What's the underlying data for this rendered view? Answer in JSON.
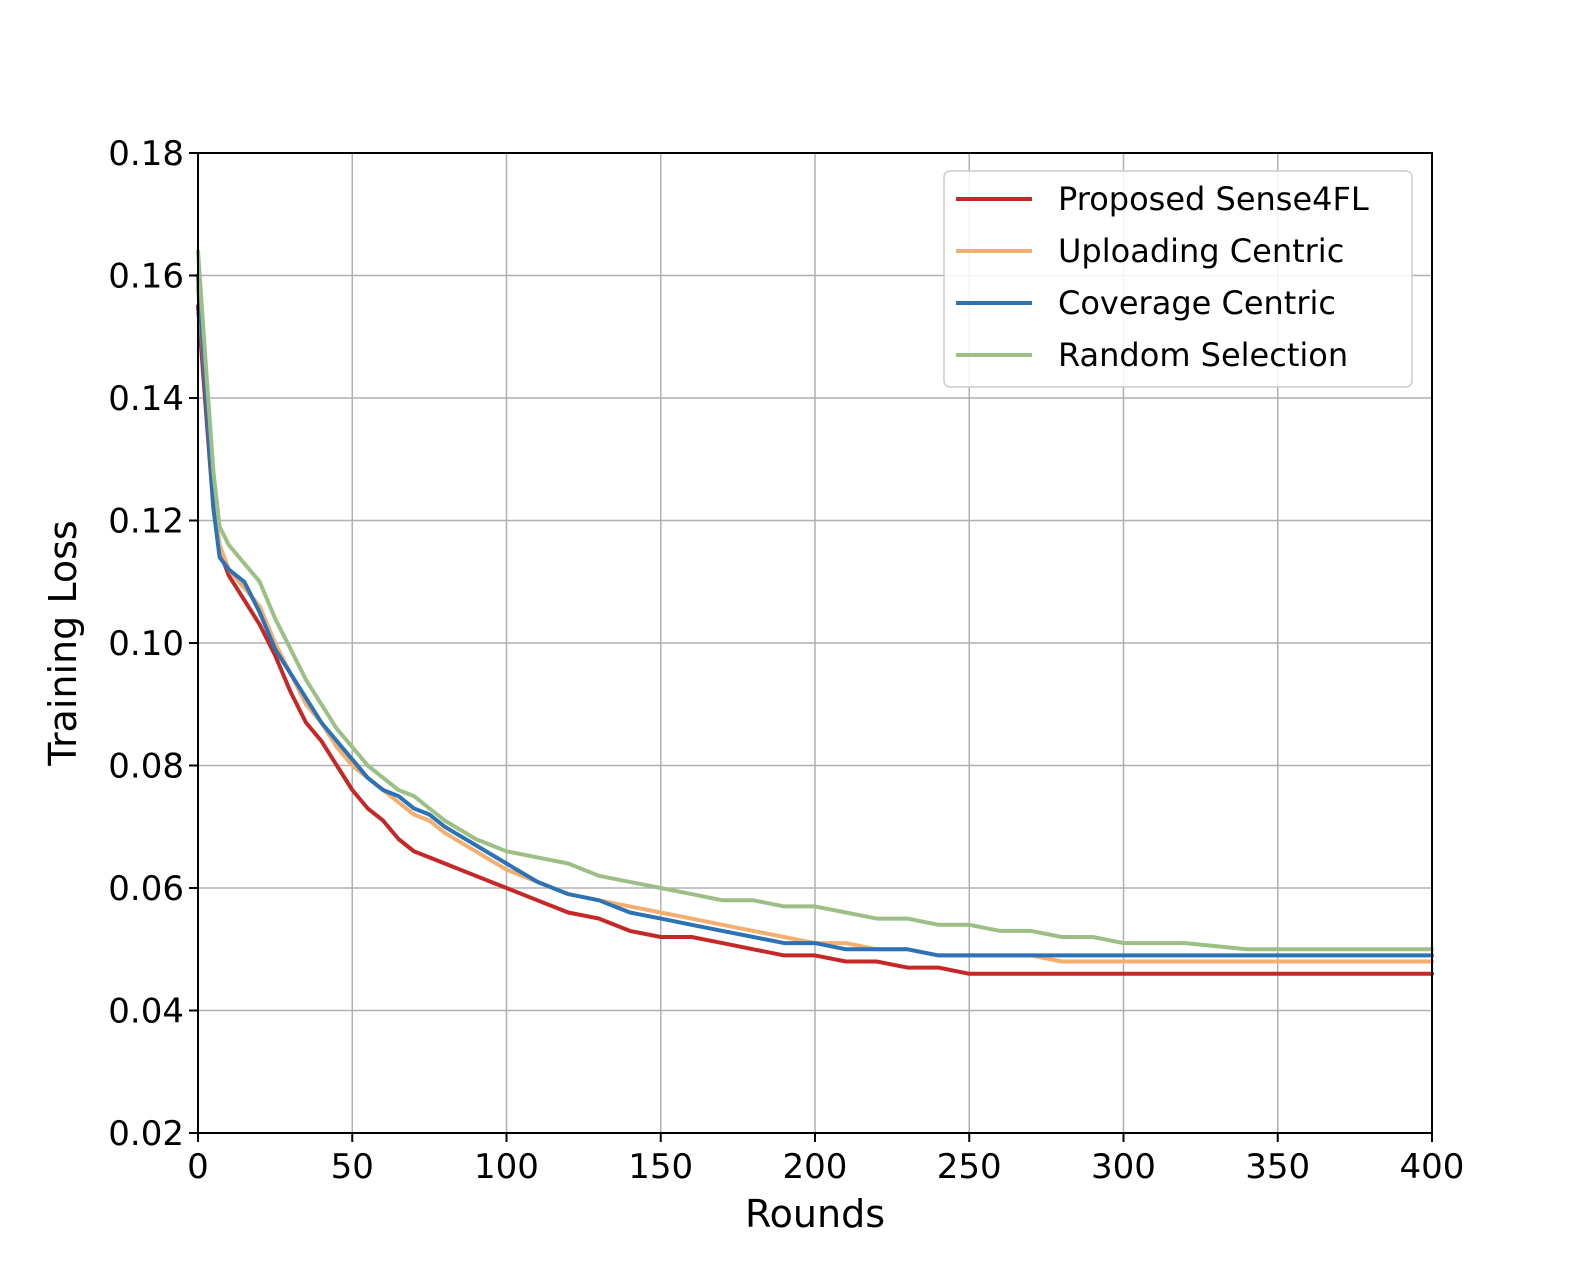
{
  "chart_data": {
    "type": "line",
    "xlabel": "Rounds",
    "ylabel": "Training Loss",
    "xlim": [
      0,
      400
    ],
    "ylim": [
      0.02,
      0.18
    ],
    "xticks": [
      "0",
      "50",
      "100",
      "150",
      "200",
      "250",
      "300",
      "350",
      "400"
    ],
    "yticks": [
      "0.02",
      "0.04",
      "0.06",
      "0.08",
      "0.10",
      "0.12",
      "0.14",
      "0.16",
      "0.18"
    ],
    "grid": true,
    "legend_position": "top-right",
    "series": [
      {
        "name": "Proposed Sense4FL",
        "color": "#c62828",
        "x": [
          0,
          3,
          5,
          7,
          10,
          15,
          20,
          25,
          30,
          35,
          40,
          45,
          50,
          55,
          60,
          65,
          70,
          75,
          80,
          90,
          100,
          110,
          120,
          130,
          140,
          150,
          160,
          170,
          180,
          190,
          200,
          210,
          220,
          230,
          240,
          250,
          260,
          270,
          280,
          290,
          300,
          320,
          340,
          360,
          380,
          400
        ],
        "y": [
          0.155,
          0.135,
          0.122,
          0.115,
          0.111,
          0.107,
          0.103,
          0.098,
          0.092,
          0.087,
          0.084,
          0.08,
          0.076,
          0.073,
          0.071,
          0.068,
          0.066,
          0.065,
          0.064,
          0.062,
          0.06,
          0.058,
          0.056,
          0.055,
          0.053,
          0.052,
          0.052,
          0.051,
          0.05,
          0.049,
          0.049,
          0.048,
          0.048,
          0.047,
          0.047,
          0.046,
          0.046,
          0.046,
          0.046,
          0.046,
          0.046,
          0.046,
          0.046,
          0.046,
          0.046,
          0.046
        ]
      },
      {
        "name": "Uploading Centric",
        "color": "#f4ae6f",
        "x": [
          0,
          3,
          5,
          7,
          10,
          15,
          20,
          25,
          30,
          35,
          40,
          45,
          50,
          55,
          60,
          65,
          70,
          75,
          80,
          90,
          100,
          110,
          120,
          130,
          140,
          150,
          160,
          170,
          180,
          190,
          200,
          210,
          220,
          230,
          240,
          250,
          260,
          270,
          280,
          290,
          300,
          320,
          340,
          360,
          380,
          400
        ],
        "y": [
          0.158,
          0.138,
          0.124,
          0.116,
          0.112,
          0.109,
          0.106,
          0.1,
          0.095,
          0.09,
          0.087,
          0.083,
          0.08,
          0.078,
          0.076,
          0.074,
          0.072,
          0.071,
          0.069,
          0.066,
          0.063,
          0.061,
          0.059,
          0.058,
          0.057,
          0.056,
          0.055,
          0.054,
          0.053,
          0.052,
          0.051,
          0.051,
          0.05,
          0.05,
          0.049,
          0.049,
          0.049,
          0.049,
          0.048,
          0.048,
          0.048,
          0.048,
          0.048,
          0.048,
          0.048,
          0.048
        ]
      },
      {
        "name": "Coverage Centric",
        "color": "#2b73b5",
        "x": [
          0,
          3,
          5,
          7,
          10,
          15,
          20,
          25,
          30,
          35,
          40,
          45,
          50,
          55,
          60,
          65,
          70,
          75,
          80,
          90,
          100,
          110,
          120,
          130,
          140,
          150,
          160,
          170,
          180,
          190,
          200,
          210,
          220,
          230,
          240,
          250,
          260,
          270,
          280,
          290,
          300,
          320,
          340,
          360,
          380,
          400
        ],
        "y": [
          0.16,
          0.137,
          0.122,
          0.114,
          0.112,
          0.11,
          0.105,
          0.099,
          0.095,
          0.091,
          0.087,
          0.084,
          0.081,
          0.078,
          0.076,
          0.075,
          0.073,
          0.072,
          0.07,
          0.067,
          0.064,
          0.061,
          0.059,
          0.058,
          0.056,
          0.055,
          0.054,
          0.053,
          0.052,
          0.051,
          0.051,
          0.05,
          0.05,
          0.05,
          0.049,
          0.049,
          0.049,
          0.049,
          0.049,
          0.049,
          0.049,
          0.049,
          0.049,
          0.049,
          0.049,
          0.049
        ]
      },
      {
        "name": "Random Selection",
        "color": "#9cbf86",
        "x": [
          0,
          3,
          5,
          7,
          10,
          15,
          20,
          25,
          30,
          35,
          40,
          45,
          50,
          55,
          60,
          65,
          70,
          75,
          80,
          90,
          100,
          110,
          120,
          130,
          140,
          150,
          160,
          170,
          180,
          190,
          200,
          210,
          220,
          230,
          240,
          250,
          260,
          270,
          280,
          290,
          300,
          320,
          340,
          360,
          380,
          400
        ],
        "y": [
          0.164,
          0.142,
          0.128,
          0.119,
          0.116,
          0.113,
          0.11,
          0.104,
          0.099,
          0.094,
          0.09,
          0.086,
          0.083,
          0.08,
          0.078,
          0.076,
          0.075,
          0.073,
          0.071,
          0.068,
          0.066,
          0.065,
          0.064,
          0.062,
          0.061,
          0.06,
          0.059,
          0.058,
          0.058,
          0.057,
          0.057,
          0.056,
          0.055,
          0.055,
          0.054,
          0.054,
          0.053,
          0.053,
          0.052,
          0.052,
          0.051,
          0.051,
          0.05,
          0.05,
          0.05,
          0.05
        ]
      }
    ]
  }
}
